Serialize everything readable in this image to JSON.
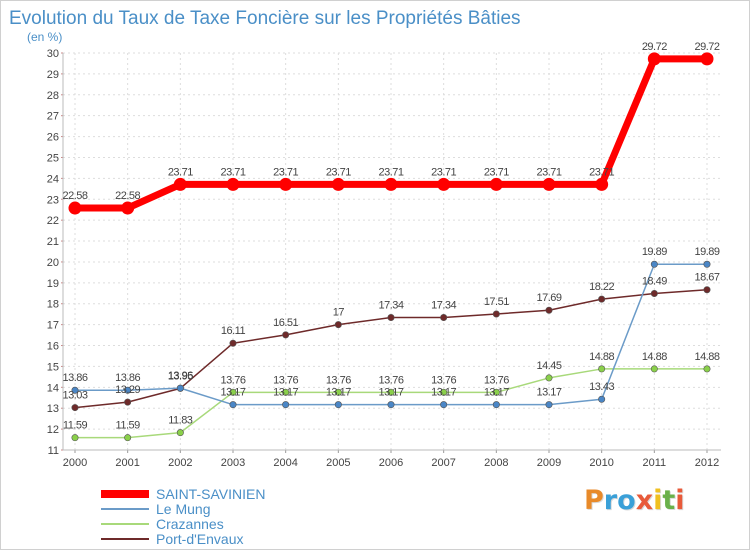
{
  "chart_data": {
    "type": "line",
    "title": "Evolution du Taux de Taxe Foncière sur les Propriétés Bâties",
    "ylabel": "(en %)",
    "xlabel": "",
    "x": [
      "2000",
      "2001",
      "2002",
      "2003",
      "2004",
      "2005",
      "2006",
      "2007",
      "2008",
      "2009",
      "2010",
      "2011",
      "2012"
    ],
    "ylim": [
      11,
      30
    ],
    "yticks": [
      "11",
      "12",
      "13",
      "14",
      "15",
      "16",
      "17",
      "18",
      "19",
      "20",
      "21",
      "22",
      "23",
      "24",
      "25",
      "26",
      "27",
      "28",
      "29",
      "30"
    ],
    "grid": true,
    "legend_position": "bottom-left",
    "series": [
      {
        "name": "SAINT-SAVINIEN",
        "color": "#ff0000",
        "values": [
          22.58,
          22.58,
          23.71,
          23.71,
          23.71,
          23.71,
          23.71,
          23.71,
          23.71,
          23.71,
          23.71,
          29.72,
          29.72
        ],
        "labels": [
          "22.58",
          "22.58",
          "23.71",
          "23.71",
          "23.71",
          "23.71",
          "23.71",
          "23.71",
          "23.71",
          "23.71",
          "23.71",
          "29.72",
          "29.72"
        ]
      },
      {
        "name": "Le Mung",
        "color": "#6b9bc8",
        "marker_color": "#4a86c6",
        "values": [
          13.86,
          13.86,
          13.96,
          13.17,
          13.17,
          13.17,
          13.17,
          13.17,
          13.17,
          13.17,
          13.43,
          19.89,
          19.89
        ],
        "labels": [
          "13.86",
          "13.86",
          "13.96",
          "13.17",
          "13.17",
          "13.17",
          "13.17",
          "13.17",
          "13.17",
          "13.17",
          "13.43",
          "19.89",
          "19.89"
        ]
      },
      {
        "name": "Crazannes",
        "color": "#a8d97a",
        "marker_color": "#8ad04a",
        "values": [
          11.59,
          11.59,
          11.83,
          13.76,
          13.76,
          13.76,
          13.76,
          13.76,
          13.76,
          14.45,
          14.88,
          14.88,
          14.88
        ],
        "labels": [
          "11.59",
          "11.59",
          "11.83",
          "13.76",
          "13.76",
          "13.76",
          "13.76",
          "13.76",
          "13.76",
          "14.45",
          "14.88",
          "14.88",
          "14.88"
        ]
      },
      {
        "name": "Port-d'Envaux",
        "color": "#6e2a2a",
        "marker_color": "#6e2a2a",
        "values": [
          13.03,
          13.29,
          13.95,
          16.11,
          16.51,
          17,
          17.34,
          17.34,
          17.51,
          17.69,
          18.22,
          18.49,
          18.67
        ],
        "labels": [
          "13.03",
          "13.29",
          "13.95",
          "16.11",
          "16.51",
          "17",
          "17.34",
          "17.34",
          "17.51",
          "17.69",
          "18.22",
          "18.49",
          "18.67"
        ]
      }
    ]
  },
  "brand": {
    "letters": [
      "P",
      "r",
      "o",
      "x",
      "i",
      "t",
      "i"
    ],
    "colors": [
      "#e88a2a",
      "#3aa0d8",
      "#3aa0d8",
      "#e85a3a",
      "#f0c020",
      "#6ab04a",
      "#e85a3a"
    ]
  }
}
